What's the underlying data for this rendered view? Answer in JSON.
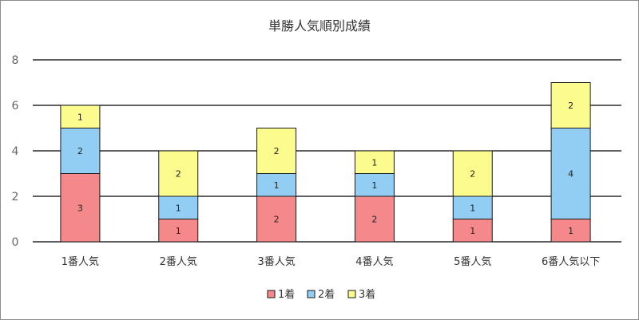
{
  "chart_data": {
    "type": "bar",
    "stacked": true,
    "title": "単勝人気順別成績",
    "xlabel": "",
    "ylabel": "",
    "categories": [
      "1番人気",
      "2番人気",
      "3番人気",
      "4番人気",
      "5番人気",
      "6番人気以下"
    ],
    "series": [
      {
        "name": "1着",
        "values": [
          3,
          1,
          2,
          2,
          1,
          1
        ],
        "color": "#f4888a"
      },
      {
        "name": "2着",
        "values": [
          2,
          1,
          1,
          1,
          1,
          4
        ],
        "color": "#92cdf4"
      },
      {
        "name": "3着",
        "values": [
          1,
          2,
          2,
          1,
          2,
          2
        ],
        "color": "#fbfb8e"
      }
    ],
    "ylim": [
      0,
      8
    ],
    "yticks": [
      0,
      2,
      4,
      6,
      8
    ],
    "grid": true,
    "legend_position": "bottom"
  }
}
